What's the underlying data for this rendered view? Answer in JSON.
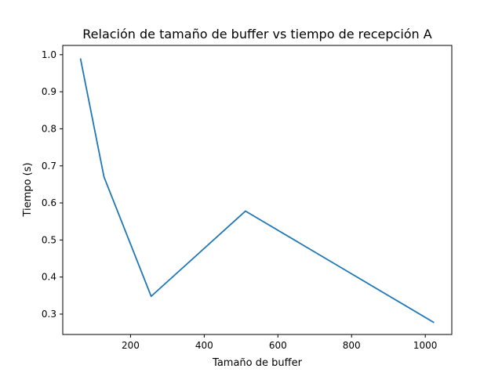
{
  "chart_data": {
    "type": "line",
    "title": "Relación de tamaño de buffer vs tiempo de recepción A",
    "xlabel": "Tamaño de buffer",
    "ylabel": "Tiempo (s)",
    "xlim": [
      16,
      1072
    ],
    "ylim": [
      0.245,
      1.025
    ],
    "xticks": [
      200,
      400,
      600,
      800,
      1000
    ],
    "xtick_labels": [
      "200",
      "400",
      "600",
      "800",
      "1000"
    ],
    "yticks": [
      0.3,
      0.4,
      0.5,
      0.6,
      0.7,
      0.8,
      0.9,
      1.0
    ],
    "ytick_labels": [
      "0.3",
      "0.4",
      "0.5",
      "0.6",
      "0.7",
      "0.8",
      "0.9",
      "1.0"
    ],
    "grid": false,
    "series": [
      {
        "color": "#1f77b4",
        "x": [
          64,
          128,
          256,
          512,
          1024
        ],
        "y": [
          0.99,
          0.67,
          0.348,
          0.578,
          0.277
        ]
      }
    ]
  }
}
